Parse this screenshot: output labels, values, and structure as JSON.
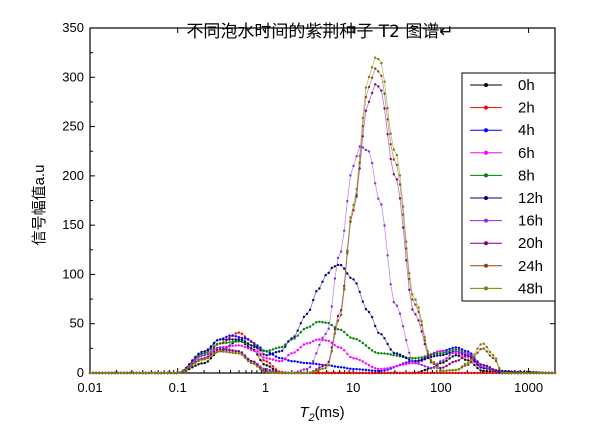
{
  "chart_data": {
    "type": "line",
    "title": "不同泡水时间的紫荆种子 T2 图谱↵",
    "xlabel_main": "T",
    "xlabel_sub": "2",
    "xlabel_unit": "(ms)",
    "ylabel": "信号幅值a.u",
    "x_scale": "log",
    "xlim": [
      0.01,
      2000
    ],
    "ylim": [
      0,
      350
    ],
    "x_ticks": [
      {
        "value": 0.01,
        "label": "0.01"
      },
      {
        "value": 0.1,
        "label": "0.1"
      },
      {
        "value": 1,
        "label": "1"
      },
      {
        "value": 10,
        "label": "10"
      },
      {
        "value": 100,
        "label": "100"
      },
      {
        "value": 1000,
        "label": "1000"
      }
    ],
    "y_ticks": [
      {
        "value": 0,
        "label": "0"
      },
      {
        "value": 50,
        "label": "50"
      },
      {
        "value": 100,
        "label": "100"
      },
      {
        "value": 150,
        "label": "150"
      },
      {
        "value": 200,
        "label": "200"
      },
      {
        "value": 250,
        "label": "250"
      },
      {
        "value": 300,
        "label": "300"
      },
      {
        "value": 350,
        "label": "350"
      }
    ],
    "legend_position": "top-right",
    "grid": false,
    "series": [
      {
        "name": "0h",
        "color": "#000000",
        "x": [
          0.1,
          0.2,
          0.3,
          0.5,
          0.7,
          1,
          1.5,
          2,
          3,
          5,
          7,
          10,
          20,
          50,
          80,
          100,
          150,
          200,
          300,
          500,
          700,
          1000,
          2000
        ],
        "y": [
          0,
          10,
          22,
          33,
          25,
          8,
          0,
          0,
          0,
          0,
          0,
          0,
          0,
          0,
          5,
          10,
          18,
          13,
          2,
          1,
          1,
          1,
          0
        ]
      },
      {
        "name": "2h",
        "color": "#ff0000",
        "x": [
          0.1,
          0.2,
          0.3,
          0.5,
          0.7,
          1,
          1.5,
          2,
          3,
          5,
          7,
          10,
          20,
          50,
          80,
          100,
          150,
          200,
          300,
          500,
          700,
          1000,
          2000
        ],
        "y": [
          0,
          14,
          30,
          41,
          32,
          12,
          1,
          0,
          0,
          0,
          0,
          0,
          0,
          0,
          0,
          0,
          0,
          0,
          0,
          0,
          0,
          0,
          0
        ]
      },
      {
        "name": "4h",
        "color": "#0000ff",
        "x": [
          0.1,
          0.2,
          0.3,
          0.4,
          0.6,
          0.8,
          1,
          1.5,
          2,
          3,
          5,
          7,
          10,
          20,
          50,
          100,
          150,
          200,
          300,
          500,
          2000
        ],
        "y": [
          0,
          20,
          34,
          38,
          35,
          28,
          22,
          15,
          12,
          10,
          8,
          6,
          4,
          2,
          12,
          22,
          26,
          22,
          8,
          0,
          0
        ]
      },
      {
        "name": "6h",
        "color": "#ff00ff",
        "x": [
          0.1,
          0.2,
          0.3,
          0.5,
          0.8,
          1,
          1.5,
          2,
          3,
          4,
          5,
          7,
          10,
          20,
          50,
          100,
          150,
          200,
          300,
          500,
          2000
        ],
        "y": [
          0,
          18,
          26,
          28,
          22,
          15,
          12,
          20,
          30,
          34,
          33,
          26,
          15,
          4,
          10,
          22,
          20,
          16,
          5,
          0,
          0
        ]
      },
      {
        "name": "8h",
        "color": "#008000",
        "x": [
          0.1,
          0.2,
          0.3,
          0.5,
          0.7,
          1,
          1.5,
          2,
          3,
          4,
          5,
          7,
          10,
          20,
          50,
          100,
          150,
          200,
          300,
          500,
          2000
        ],
        "y": [
          0,
          20,
          30,
          32,
          28,
          22,
          26,
          34,
          46,
          52,
          51,
          44,
          35,
          20,
          15,
          20,
          24,
          20,
          5,
          0,
          0
        ]
      },
      {
        "name": "12h",
        "color": "#000080",
        "x": [
          0.1,
          0.2,
          0.3,
          0.5,
          0.8,
          1,
          1.5,
          2,
          3,
          4,
          5,
          6,
          7,
          10,
          15,
          20,
          30,
          50,
          100,
          150,
          200,
          300,
          500,
          1000,
          2000
        ],
        "y": [
          0,
          22,
          34,
          34,
          26,
          18,
          22,
          35,
          60,
          85,
          100,
          108,
          110,
          95,
          62,
          40,
          20,
          12,
          18,
          22,
          18,
          5,
          2,
          0,
          0
        ]
      },
      {
        "name": "16h",
        "color": "#8a2be2",
        "x": [
          0.1,
          0.2,
          0.3,
          0.5,
          0.7,
          1,
          1.5,
          2,
          3,
          5,
          7,
          10,
          12,
          15,
          20,
          30,
          50,
          80,
          100,
          150,
          200,
          300,
          500,
          2000
        ],
        "y": [
          0,
          18,
          26,
          22,
          12,
          4,
          0,
          0,
          4,
          40,
          120,
          210,
          230,
          225,
          175,
          70,
          10,
          5,
          12,
          22,
          20,
          6,
          0,
          0
        ]
      },
      {
        "name": "20h",
        "color": "#800080",
        "x": [
          0.1,
          0.2,
          0.3,
          0.5,
          0.7,
          1,
          1.5,
          2,
          3,
          5,
          7,
          10,
          15,
          18,
          20,
          30,
          50,
          80,
          100,
          150,
          200,
          300,
          500,
          2000
        ],
        "y": [
          0,
          15,
          24,
          22,
          12,
          2,
          0,
          0,
          0,
          8,
          60,
          165,
          275,
          293,
          290,
          200,
          60,
          10,
          5,
          12,
          18,
          8,
          0,
          0
        ]
      },
      {
        "name": "24h",
        "color": "#8b4513",
        "x": [
          0.1,
          0.2,
          0.3,
          0.5,
          0.7,
          1,
          1.5,
          2,
          3,
          5,
          7,
          10,
          15,
          18,
          20,
          30,
          50,
          80,
          100,
          150,
          200,
          300,
          400,
          500,
          2000
        ],
        "y": [
          0,
          14,
          22,
          20,
          10,
          1,
          0,
          0,
          0,
          5,
          55,
          165,
          290,
          309,
          305,
          215,
          70,
          10,
          2,
          3,
          8,
          25,
          15,
          0,
          0
        ]
      },
      {
        "name": "48h",
        "color": "#808000",
        "x": [
          0.1,
          0.2,
          0.3,
          0.5,
          0.7,
          1,
          1.5,
          2,
          3,
          5,
          7,
          10,
          15,
          18,
          20,
          30,
          50,
          80,
          100,
          150,
          200,
          300,
          400,
          500,
          2000
        ],
        "y": [
          0,
          14,
          22,
          20,
          10,
          1,
          0,
          0,
          0,
          5,
          55,
          170,
          300,
          320,
          318,
          225,
          75,
          12,
          2,
          3,
          10,
          30,
          18,
          0,
          0
        ]
      }
    ]
  }
}
